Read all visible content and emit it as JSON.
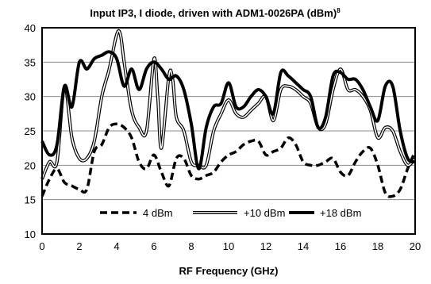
{
  "chart_data": {
    "type": "line",
    "title": "Input IP3, I diode, driven with ADM1-0026PA (dBm)",
    "title_superscript": "8",
    "xlabel": "RF Frequency (GHz)",
    "ylabel": "",
    "xlim": [
      0,
      20
    ],
    "ylim": [
      10,
      40
    ],
    "xticks": [
      0,
      2,
      4,
      6,
      8,
      10,
      12,
      14,
      16,
      18,
      20
    ],
    "yticks": [
      10,
      15,
      20,
      25,
      30,
      35,
      40
    ],
    "grid": "horizontal major",
    "legend_position": "bottom-center, inside plot",
    "series": [
      {
        "name": "4 dBm",
        "style": "dashed",
        "color": "#000000",
        "x": [
          0,
          0.4,
          0.8,
          1.2,
          1.6,
          2.0,
          2.4,
          2.8,
          3.2,
          3.6,
          4.0,
          4.4,
          4.8,
          5.2,
          5.6,
          6.0,
          6.4,
          6.8,
          7.2,
          7.6,
          8.0,
          8.4,
          8.8,
          9.2,
          9.6,
          10.0,
          10.4,
          10.8,
          11.2,
          11.6,
          12.0,
          12.4,
          12.8,
          13.2,
          13.6,
          14.0,
          14.4,
          14.8,
          15.2,
          15.6,
          16.0,
          16.4,
          16.8,
          17.2,
          17.6,
          18.0,
          18.4,
          18.8,
          19.2,
          19.6,
          20.0
        ],
        "values": [
          15.5,
          18,
          19.5,
          17.5,
          17,
          16.5,
          16.5,
          22,
          23,
          25.5,
          26,
          25.5,
          24,
          20.5,
          19.5,
          21.5,
          19,
          17,
          21,
          21,
          18.5,
          18,
          18.5,
          19,
          20.5,
          21.5,
          22,
          23,
          23.5,
          23.5,
          21.5,
          22,
          22.5,
          24,
          23,
          20.5,
          20,
          20,
          20.5,
          21,
          19,
          18.5,
          20.5,
          22,
          22.5,
          20,
          16,
          15.5,
          16.5,
          19.5,
          22
        ]
      },
      {
        "name": "+10 dBm",
        "style": "double",
        "color": "#000000",
        "x": [
          0,
          0.4,
          0.8,
          1.2,
          1.6,
          2.0,
          2.4,
          2.8,
          3.2,
          3.6,
          4.0,
          4.2,
          4.4,
          4.8,
          5.2,
          5.6,
          6.0,
          6.2,
          6.4,
          6.8,
          7.0,
          7.2,
          7.6,
          8.0,
          8.4,
          8.8,
          9.2,
          9.6,
          10.0,
          10.4,
          10.8,
          11.2,
          11.6,
          12.0,
          12.4,
          12.8,
          13.2,
          13.6,
          14.0,
          14.4,
          14.8,
          15.2,
          15.6,
          16.0,
          16.4,
          16.8,
          17.2,
          17.6,
          18.0,
          18.4,
          18.8,
          19.2,
          19.6,
          20.0
        ],
        "values": [
          18,
          20.5,
          20.5,
          31.5,
          24,
          21,
          21,
          23.5,
          30,
          34,
          39,
          39,
          35,
          28,
          25.5,
          25,
          35.5,
          30,
          22.5,
          33,
          32.5,
          27,
          25,
          20.5,
          20,
          20,
          25,
          27.5,
          29.5,
          27.5,
          27,
          28,
          29,
          30,
          26.5,
          31,
          31.5,
          31,
          30,
          29,
          25.5,
          26,
          31,
          34,
          31,
          31,
          30,
          28,
          24,
          25.5,
          25,
          22,
          20,
          21
        ]
      },
      {
        "name": "+18 dBm",
        "style": "thick",
        "color": "#000000",
        "x": [
          0,
          0.4,
          0.8,
          1.2,
          1.6,
          2.0,
          2.4,
          2.8,
          3.2,
          3.6,
          4.0,
          4.4,
          4.8,
          5.2,
          5.6,
          6.0,
          6.4,
          6.8,
          7.2,
          7.6,
          8.0,
          8.4,
          8.8,
          9.2,
          9.6,
          10.0,
          10.4,
          10.8,
          11.2,
          11.6,
          12.0,
          12.4,
          12.8,
          13.2,
          13.6,
          14.0,
          14.4,
          14.8,
          15.2,
          15.6,
          16.0,
          16.4,
          16.8,
          17.2,
          17.6,
          18.0,
          18.4,
          18.8,
          19.2,
          19.6,
          20.0
        ],
        "values": [
          23.5,
          21.5,
          23,
          31.5,
          28.5,
          35,
          34,
          35.5,
          36,
          36.5,
          35.5,
          31.5,
          34,
          31,
          34,
          35,
          34,
          32.5,
          33,
          31,
          26,
          19.5,
          25.5,
          28.5,
          29,
          32,
          28.5,
          28.5,
          30,
          31,
          30,
          27.5,
          33.5,
          33,
          32,
          31,
          30,
          25.5,
          27,
          33,
          33.5,
          32.5,
          32.5,
          31,
          28.5,
          26.5,
          31.5,
          31.5,
          25,
          21,
          20.5
        ]
      }
    ]
  }
}
